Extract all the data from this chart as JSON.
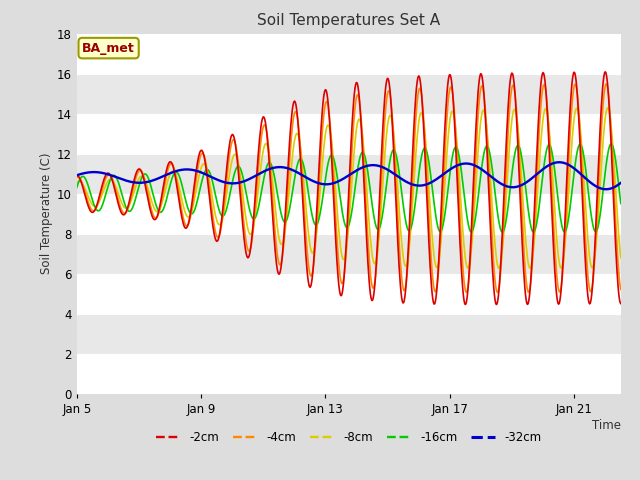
{
  "title": "Soil Temperatures Set A",
  "xlabel": "Time",
  "ylabel": "Soil Temperature (C)",
  "annotation": "BA_met",
  "ylim": [
    0,
    18
  ],
  "yticks": [
    0,
    2,
    4,
    6,
    8,
    10,
    12,
    14,
    16,
    18
  ],
  "xtick_labels": [
    "Jan 5",
    "Jan 9",
    "Jan 13",
    "Jan 17",
    "Jan 21"
  ],
  "xtick_positions": [
    0,
    4,
    8,
    12,
    16
  ],
  "colors": {
    "-2cm": "#dd0000",
    "-4cm": "#ff8800",
    "-8cm": "#ddcc00",
    "-16cm": "#00cc00",
    "-32cm": "#0000cc"
  },
  "bg_color": "#dddddd",
  "plot_bg_color": "#e8e8e8",
  "band_colors": [
    "#e8e8e8",
    "#d8d8d8"
  ],
  "grid_color": "#ffffff",
  "line_width": 1.2,
  "n_days": 17.5,
  "mean_start": 10.0,
  "mean_end": 10.2
}
